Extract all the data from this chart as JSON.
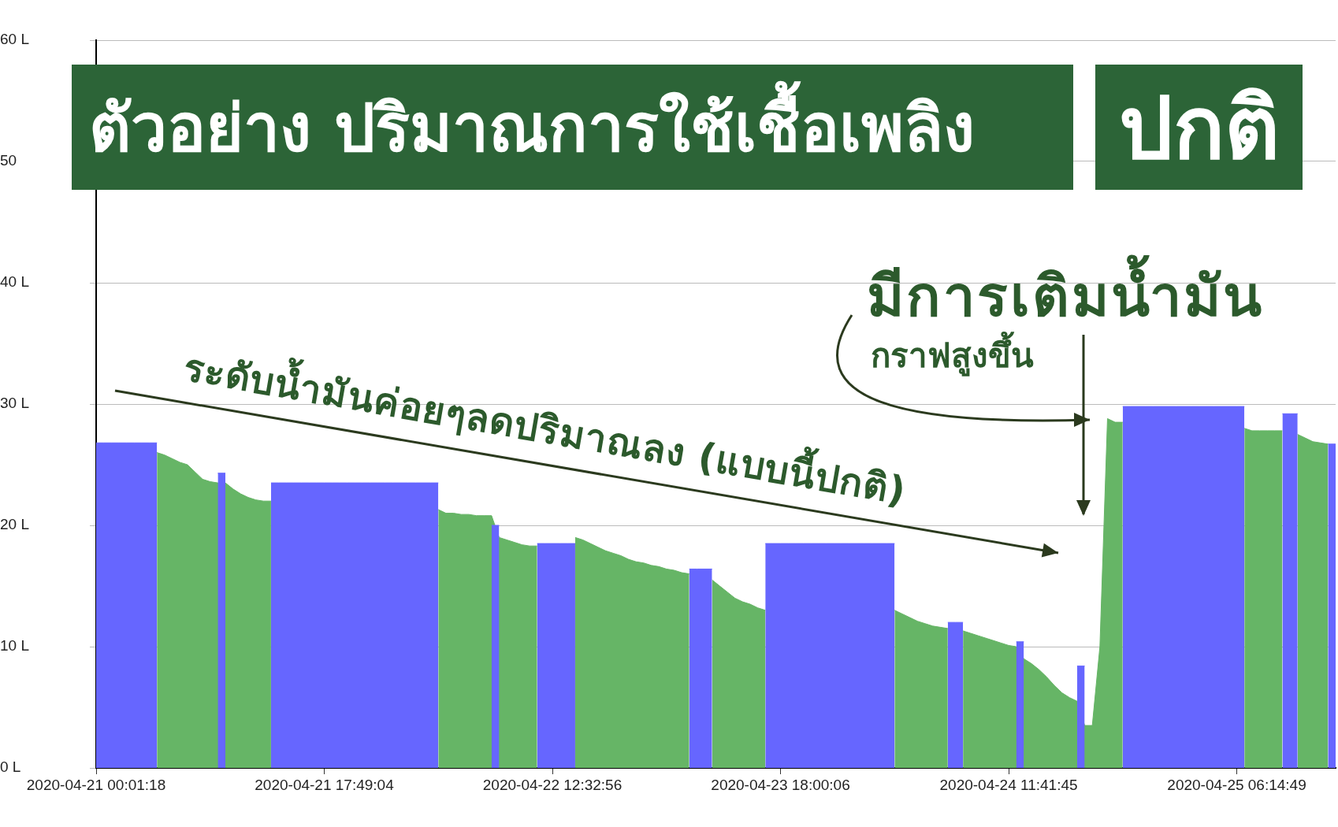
{
  "chart_data": {
    "type": "area",
    "title": "ตัวอย่าง ปริมาณการใช้เชื้อเพลิง",
    "subtitle": "ปกติ",
    "annotations": [
      "มีการเติมน้ำมัน",
      "กราฟสูงขึ้น",
      "ระดับน้ำมันค่อยๆลดปริมาณลง (แบบนี้ปกติ)"
    ],
    "grid": "y",
    "ylim": [
      0,
      60
    ],
    "categories": [
      "2020-04-21 00:01:18",
      null,
      null,
      null,
      null,
      null,
      null,
      null,
      null,
      null,
      null,
      null,
      null,
      null,
      null,
      null,
      null,
      null,
      null,
      null,
      null,
      null,
      null,
      null,
      null,
      null,
      null,
      null,
      null,
      null,
      "2020-04-21 17:49:04",
      null,
      null,
      null,
      null,
      null,
      null,
      null,
      null,
      null,
      null,
      null,
      null,
      null,
      null,
      null,
      null,
      null,
      null,
      null,
      null,
      null,
      null,
      null,
      null,
      null,
      null,
      null,
      null,
      null,
      "2020-04-22 12:32:56",
      null,
      null,
      null,
      null,
      null,
      null,
      null,
      null,
      null,
      null,
      null,
      null,
      null,
      null,
      null,
      null,
      null,
      null,
      null,
      null,
      null,
      null,
      null,
      null,
      null,
      null,
      null,
      null,
      null,
      "2020-04-23 18:00:06",
      null,
      null,
      null,
      null,
      null,
      null,
      null,
      null,
      null,
      null,
      null,
      null,
      null,
      null,
      null,
      null,
      null,
      null,
      null,
      null,
      null,
      null,
      null,
      null,
      null,
      null,
      null,
      null,
      null,
      "2020-04-24 11:41:45",
      null,
      null,
      null,
      null,
      null,
      null,
      null,
      null,
      null,
      null,
      null,
      null,
      null,
      null,
      null,
      null,
      null,
      null,
      null,
      null,
      null,
      null,
      null,
      null,
      null,
      null,
      null,
      null,
      null,
      "2020-04-25 06:14:49",
      null,
      null,
      null,
      null,
      null,
      null,
      null,
      null,
      null,
      null,
      null,
      null,
      null
    ],
    "yticks": [
      {
        "value": 0,
        "label": "0 L"
      },
      {
        "value": 10,
        "label": "10 L"
      },
      {
        "value": 20,
        "label": "20 L"
      },
      {
        "value": 30,
        "label": "30 L"
      },
      {
        "value": 40,
        "label": "40 L"
      },
      {
        "value": 50,
        "label": "50"
      },
      {
        "value": 60,
        "label": "60 L"
      }
    ],
    "series": [
      {
        "color": "#66b566",
        "values": [
          null,
          null,
          null,
          null,
          null,
          null,
          null,
          null,
          26,
          25.8,
          25.5,
          25.2,
          25,
          24.4,
          23.8,
          23.6,
          23.5,
          23.5,
          23,
          22.6,
          22.3,
          22.1,
          22,
          22,
          null,
          null,
          null,
          null,
          null,
          null,
          null,
          null,
          null,
          null,
          null,
          null,
          null,
          null,
          null,
          null,
          null,
          null,
          null,
          null,
          null,
          21.3,
          21,
          21,
          20.9,
          20.9,
          20.8,
          20.8,
          20.8,
          19,
          18.8,
          18.6,
          18.4,
          18.3,
          18.3,
          null,
          null,
          null,
          null,
          19,
          18.8,
          18.5,
          18.2,
          17.9,
          17.7,
          17.5,
          17.2,
          17,
          16.9,
          16.7,
          16.6,
          16.4,
          16.3,
          16.1,
          16,
          null,
          null,
          15.5,
          15,
          14.5,
          14,
          13.7,
          13.5,
          13.2,
          13,
          null,
          null,
          null,
          null,
          null,
          null,
          null,
          null,
          null,
          null,
          null,
          null,
          null,
          null,
          null,
          null,
          13,
          12.7,
          12.4,
          12.1,
          11.9,
          11.7,
          11.6,
          11.5,
          null,
          11.3,
          11.1,
          10.9,
          10.7,
          10.5,
          10.3,
          10.1,
          10,
          9,
          8.6,
          8.1,
          7.5,
          6.8,
          6.2,
          5.8,
          5.5,
          3.5,
          3.5,
          10,
          28.8,
          28.5,
          28.5,
          null,
          null,
          null,
          null,
          null,
          null,
          null,
          null,
          null,
          null,
          null,
          null,
          null,
          null,
          null,
          28,
          27.8,
          27.8,
          27.8,
          27.8,
          27.8,
          null,
          27.5,
          27.2,
          26.9,
          26.8,
          26.7,
          null
        ]
      },
      {
        "color": "#6666ff",
        "values": [
          26.8,
          26.8,
          26.8,
          26.8,
          26.8,
          26.8,
          26.8,
          26.8,
          26.8,
          null,
          null,
          null,
          null,
          null,
          null,
          null,
          24.3,
          24.3,
          null,
          null,
          null,
          null,
          null,
          23.5,
          23.5,
          23.5,
          23.5,
          23.5,
          23.5,
          23.5,
          23.5,
          23.5,
          23.5,
          23.5,
          23.5,
          23.5,
          23.5,
          23.5,
          23.5,
          23.5,
          23.5,
          23.5,
          23.5,
          23.5,
          23.5,
          23.5,
          null,
          null,
          null,
          null,
          null,
          null,
          20,
          20,
          null,
          null,
          null,
          null,
          18.5,
          18.5,
          18.5,
          18.5,
          18.5,
          18.5,
          null,
          null,
          null,
          null,
          null,
          null,
          null,
          null,
          null,
          null,
          null,
          null,
          null,
          null,
          16.4,
          16.4,
          16.4,
          16.4,
          null,
          null,
          null,
          null,
          null,
          null,
          18.5,
          18.5,
          18.5,
          18.5,
          18.5,
          18.5,
          18.5,
          18.5,
          18.5,
          18.5,
          18.5,
          18.5,
          18.5,
          18.5,
          18.5,
          18.5,
          18.5,
          18.5,
          null,
          null,
          null,
          null,
          null,
          null,
          12,
          12,
          12,
          null,
          null,
          null,
          null,
          null,
          null,
          10.4,
          10.4,
          null,
          null,
          null,
          null,
          null,
          null,
          8.4,
          8.4,
          null,
          null,
          null,
          null,
          29.8,
          29.8,
          29.8,
          29.8,
          29.8,
          29.8,
          29.8,
          29.8,
          29.8,
          29.8,
          29.8,
          29.8,
          29.8,
          29.8,
          29.8,
          29.8,
          29.8,
          null,
          null,
          null,
          null,
          29.2,
          29.2,
          29.2,
          null,
          null,
          null,
          26.7,
          26.7
        ]
      }
    ]
  }
}
